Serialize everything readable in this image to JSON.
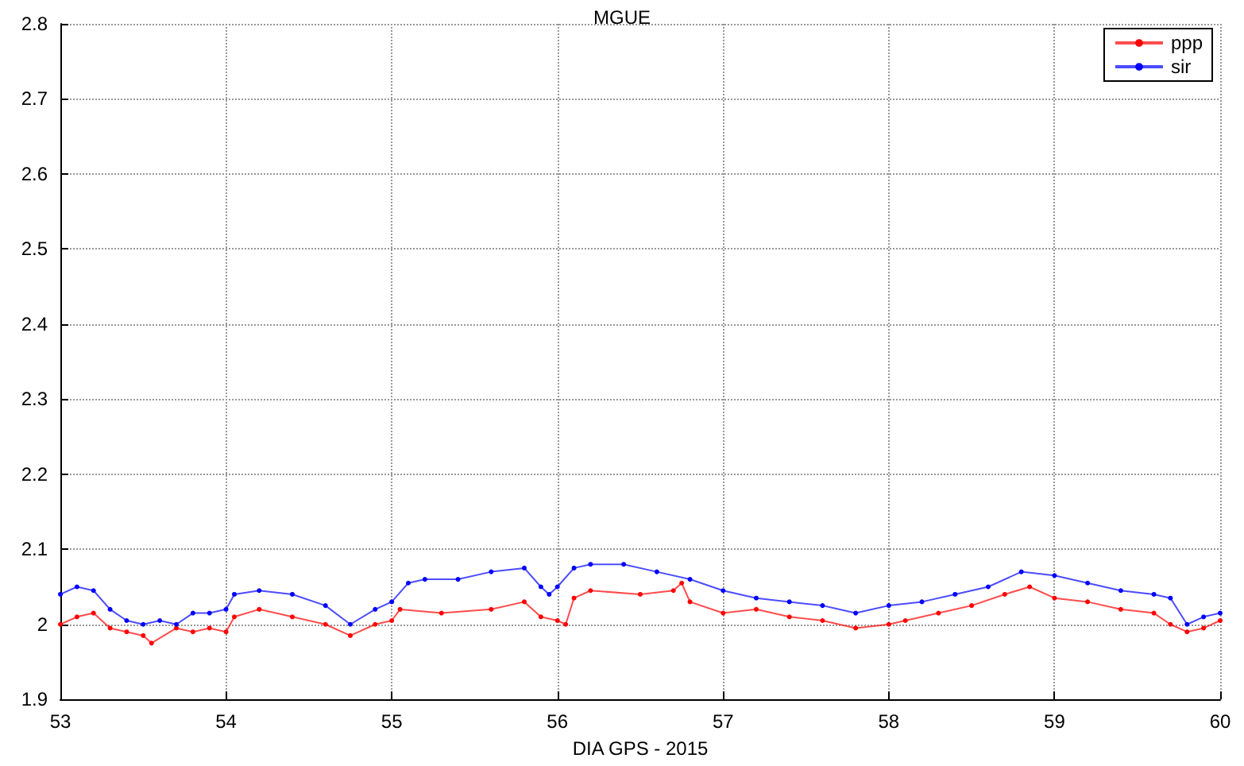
{
  "chart_data": {
    "type": "line",
    "title": "MGUE",
    "xlabel": "DIA GPS - 2015",
    "xlim": [
      53,
      60
    ],
    "xticks": [
      53,
      54,
      55,
      56,
      57,
      58,
      59,
      60
    ],
    "ylim": [
      1.9,
      2.8
    ],
    "yticks": [
      {
        "value": 1.9,
        "label": "1.9"
      },
      {
        "value": 2.0,
        "label": "2"
      },
      {
        "value": 2.1,
        "label": "2.1"
      },
      {
        "value": 2.2,
        "label": "2.2"
      },
      {
        "value": 2.3,
        "label": "2.3"
      },
      {
        "value": 2.4,
        "label": "2.4"
      },
      {
        "value": 2.5,
        "label": "2.5"
      },
      {
        "value": 2.6,
        "label": "2.6"
      },
      {
        "value": 2.7,
        "label": "2.7"
      },
      {
        "value": 2.8,
        "label": "2.8"
      }
    ],
    "grid": true,
    "legend": "top right",
    "marker": "circle",
    "line_style": "solid",
    "series": [
      {
        "name": "ppp",
        "color": "#ff0000",
        "x": [
          53.0,
          53.1,
          53.2,
          53.3,
          53.4,
          53.5,
          53.55,
          53.7,
          53.8,
          53.9,
          54.0,
          54.05,
          54.2,
          54.4,
          54.6,
          54.75,
          54.9,
          55.0,
          55.05,
          55.3,
          55.6,
          55.8,
          55.9,
          56.0,
          56.05,
          56.1,
          56.2,
          56.5,
          56.7,
          56.75,
          56.8,
          57.0,
          57.2,
          57.4,
          57.6,
          57.8,
          58.0,
          58.1,
          58.3,
          58.5,
          58.7,
          58.85,
          59.0,
          59.2,
          59.4,
          59.6,
          59.7,
          59.8,
          59.9,
          60.0
        ],
        "values": [
          2.0,
          2.01,
          2.015,
          1.995,
          1.99,
          1.985,
          1.975,
          1.995,
          1.99,
          1.995,
          1.99,
          2.01,
          2.02,
          2.01,
          2.0,
          1.985,
          2.0,
          2.005,
          2.02,
          2.015,
          2.02,
          2.03,
          2.01,
          2.005,
          2.0,
          2.035,
          2.045,
          2.04,
          2.045,
          2.055,
          2.03,
          2.015,
          2.02,
          2.01,
          2.005,
          1.995,
          2.0,
          2.005,
          2.015,
          2.025,
          2.04,
          2.05,
          2.035,
          2.03,
          2.02,
          2.015,
          2.0,
          1.99,
          1.995,
          2.005
        ]
      },
      {
        "name": "sir",
        "color": "#0000ff",
        "x": [
          53.0,
          53.1,
          53.2,
          53.3,
          53.4,
          53.5,
          53.6,
          53.7,
          53.8,
          53.9,
          54.0,
          54.05,
          54.2,
          54.4,
          54.6,
          54.75,
          54.9,
          55.0,
          55.1,
          55.2,
          55.4,
          55.6,
          55.8,
          55.9,
          55.95,
          56.0,
          56.1,
          56.2,
          56.4,
          56.6,
          56.8,
          57.0,
          57.2,
          57.4,
          57.6,
          57.8,
          58.0,
          58.2,
          58.4,
          58.6,
          58.8,
          59.0,
          59.2,
          59.4,
          59.6,
          59.7,
          59.8,
          59.9,
          60.0
        ],
        "values": [
          2.04,
          2.05,
          2.045,
          2.02,
          2.005,
          2.0,
          2.005,
          2.0,
          2.015,
          2.015,
          2.02,
          2.04,
          2.045,
          2.04,
          2.025,
          2.0,
          2.02,
          2.03,
          2.055,
          2.06,
          2.06,
          2.07,
          2.075,
          2.05,
          2.04,
          2.05,
          2.075,
          2.08,
          2.08,
          2.07,
          2.06,
          2.045,
          2.035,
          2.03,
          2.025,
          2.015,
          2.025,
          2.03,
          2.04,
          2.05,
          2.07,
          2.065,
          2.055,
          2.045,
          2.04,
          2.035,
          2.0,
          2.01,
          2.015
        ]
      }
    ]
  }
}
